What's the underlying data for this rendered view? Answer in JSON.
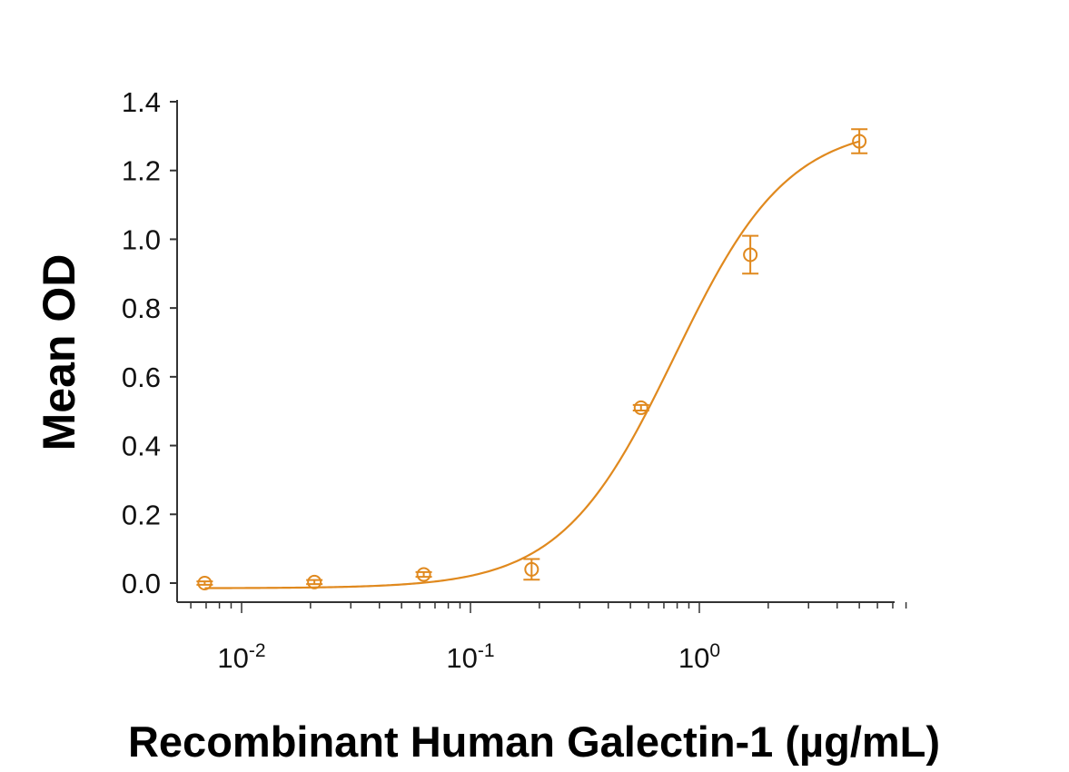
{
  "chart_data": {
    "type": "scatter",
    "title": "",
    "xlabel": "Recombinant Human Galectin-1 (µg/mL)",
    "ylabel": "Mean OD",
    "xscale": "log",
    "xlim": [
      0.0055,
      8.0
    ],
    "ylim": [
      0.0,
      1.4
    ],
    "y_ticks": [
      "0.0",
      "0.2",
      "0.4",
      "0.6",
      "0.8",
      "1.0",
      "1.2",
      "1.4"
    ],
    "x_major_ticks": [
      {
        "base": "10",
        "exp": "-2",
        "value": 0.01
      },
      {
        "base": "10",
        "exp": "-1",
        "value": 0.1
      },
      {
        "base": "10",
        "exp": "0",
        "value": 1
      }
    ],
    "grid": false,
    "color": "#E0891E",
    "series": [
      {
        "name": "Recombinant Human Galectin-1",
        "marker": "open-circle",
        "x": [
          0.0069,
          0.0208,
          0.0625,
          0.185,
          0.556,
          1.67,
          5.0
        ],
        "y": [
          0.0,
          0.003,
          0.025,
          0.04,
          0.51,
          0.955,
          1.285
        ],
        "err": [
          0.005,
          0.006,
          0.007,
          0.03,
          0.008,
          0.055,
          0.035
        ]
      }
    ],
    "fit": {
      "model": "4PL",
      "bottom": -0.015,
      "top": 1.335,
      "ec50": 0.78,
      "hill": 1.75
    }
  }
}
